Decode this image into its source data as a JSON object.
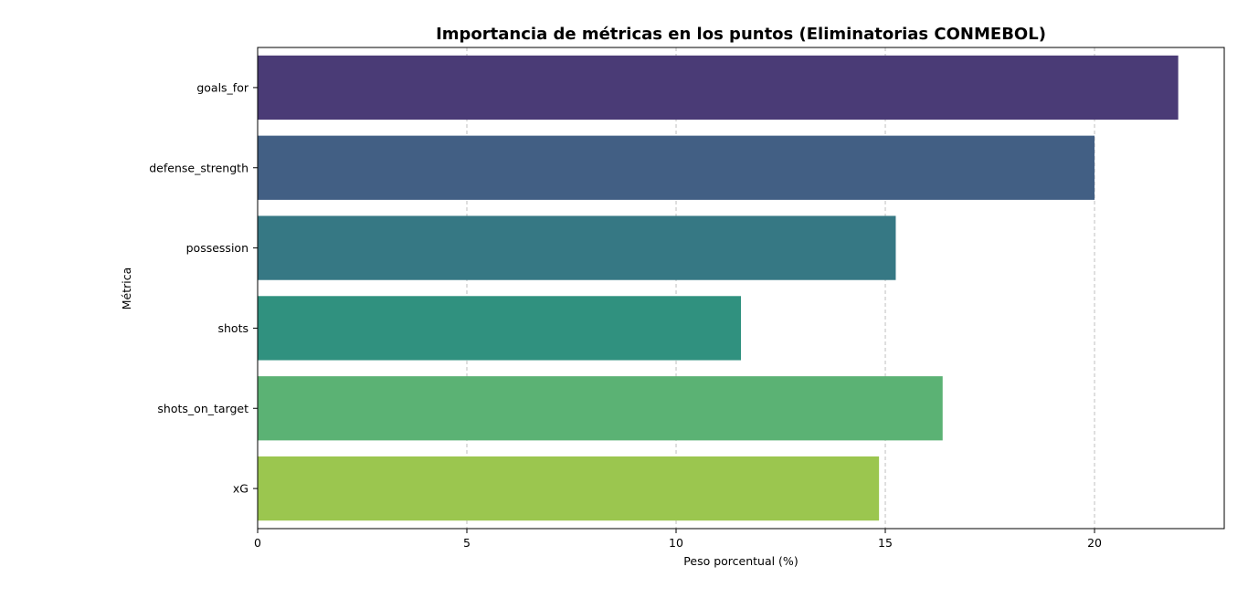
{
  "chart_data": {
    "type": "bar",
    "orientation": "horizontal",
    "title": "Importancia de métricas en los puntos (Eliminatorias CONMEBOL)",
    "xlabel": "Peso porcentual (%)",
    "ylabel": "Métrica",
    "categories": [
      "goals_for",
      "defense_strength",
      "possession",
      "shots",
      "shots_on_target",
      "xG"
    ],
    "values": [
      22.0,
      20.0,
      15.25,
      11.55,
      16.37,
      14.85
    ],
    "colors": [
      "#4a3b76",
      "#425f84",
      "#367884",
      "#30917f",
      "#5bb274",
      "#9bc64f"
    ],
    "xlim": [
      0,
      23.1
    ],
    "xticks": [
      0,
      5,
      10,
      15,
      20
    ],
    "grid": "x-dashed"
  }
}
